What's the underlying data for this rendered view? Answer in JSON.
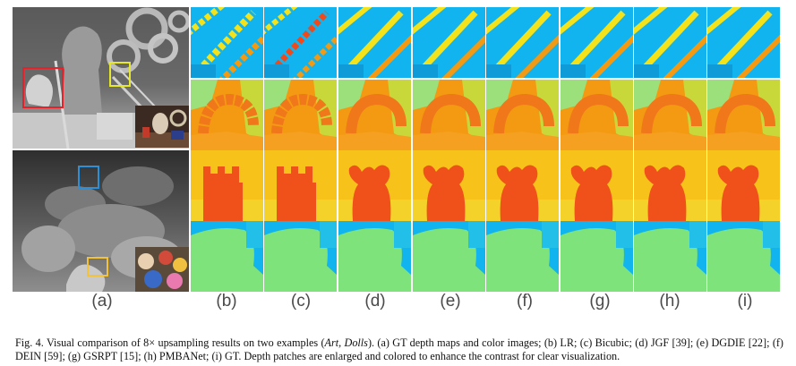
{
  "figure": {
    "panel_labels": [
      "(a)",
      "(b)",
      "(c)",
      "(d)",
      "(e)",
      "(f)",
      "(g)",
      "(h)",
      "(i)"
    ],
    "caption": {
      "prefix": "Fig. 4.  Visual comparison of 8× upsampling results on two examples (",
      "italic": "Art, Dolls",
      "suffix": "). (a) GT depth maps and color images; (b) LR; (c) Bicubic; (d) JGF [39]; (e) DGDIE [22]; (f) DEIN [59]; (g) GSRPT [15]; (h) PMBANet; (i) GT. Depth patches are enlarged and colored to enhance the contrast for clear visualization."
    },
    "highlight_colors": {
      "art_box_1": "#e8202a",
      "art_box_2": "#e6e62a",
      "dolls_box_1": "#2f8fd6",
      "dolls_box_2": "#f2c23a"
    },
    "palette": {
      "cyan": "#12b4f0",
      "yellow": "#f4e21a",
      "orange": "#f39a12",
      "red": "#f0501a",
      "green": "#7ee37a"
    }
  }
}
